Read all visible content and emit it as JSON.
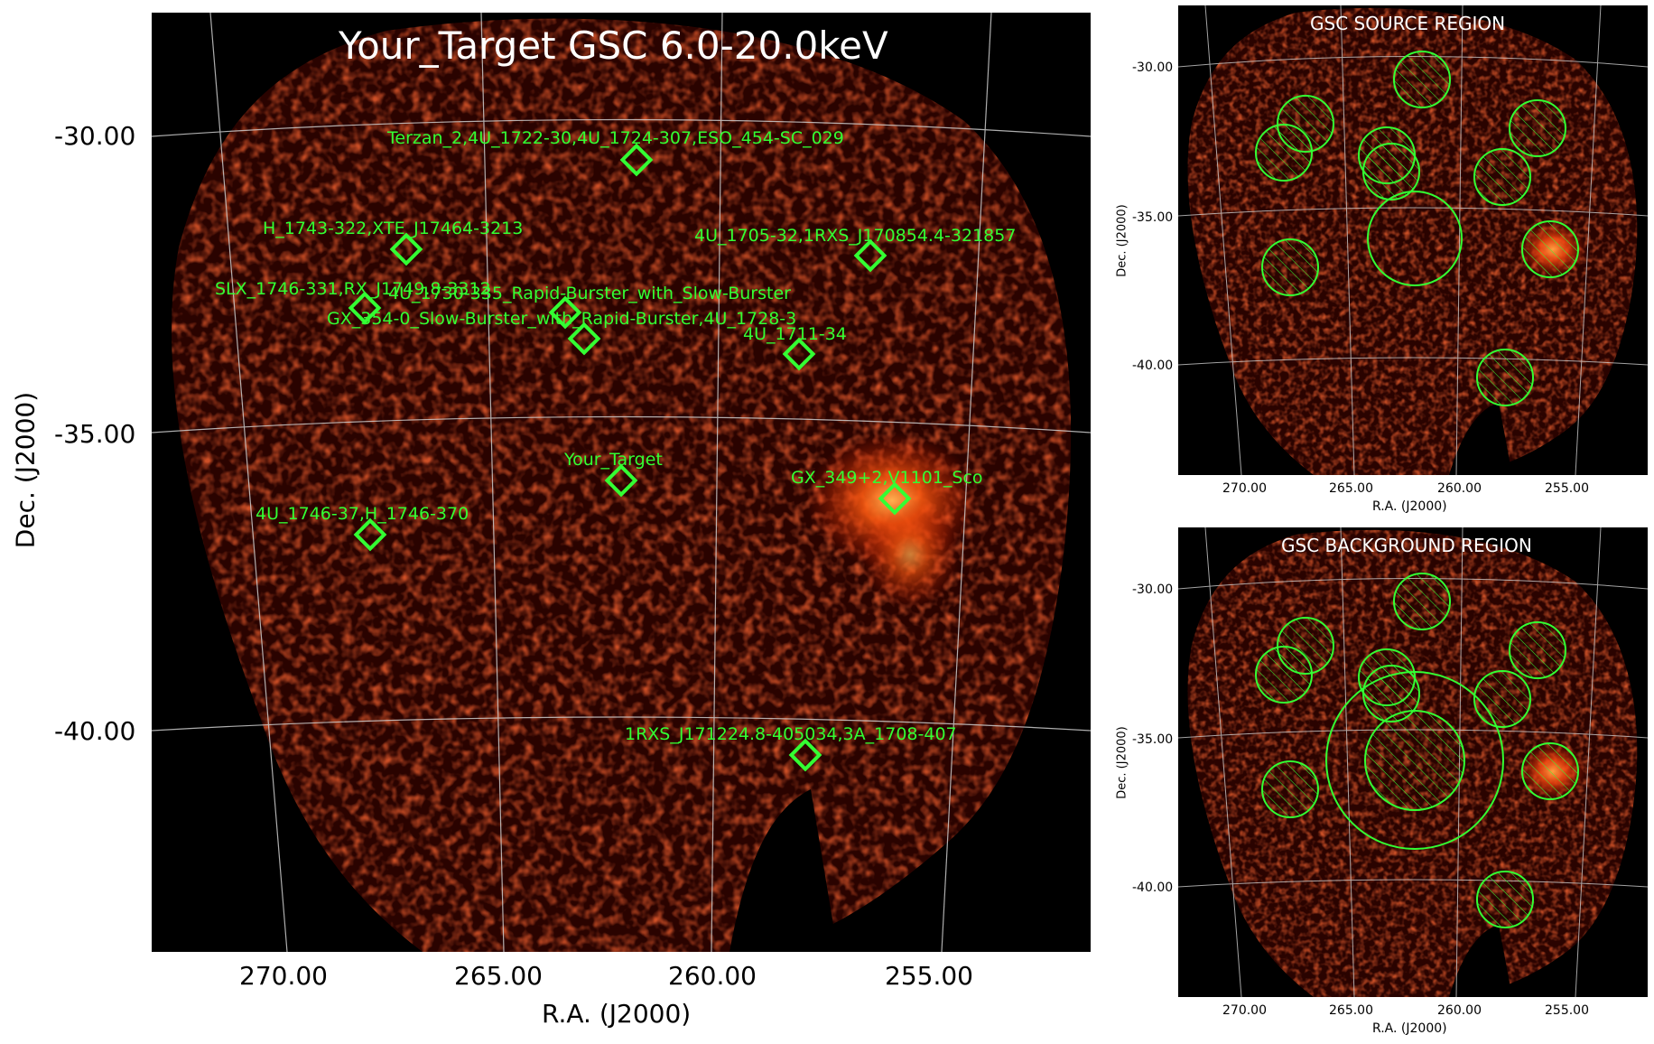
{
  "main": {
    "title": "Your_Target GSC 6.0-20.0keV",
    "xlabel": "R.A. (J2000)",
    "ylabel": "Dec. (J2000)",
    "xticks": [
      "270.00",
      "265.00",
      "260.00",
      "255.00"
    ],
    "yticks": [
      "-30.00",
      "-35.00",
      "-40.00"
    ],
    "sources": [
      {
        "label": "Terzan_2,4U_1722-30,4U_1724-307,ESO_454-SC_029"
      },
      {
        "label": "H_1743-322,XTE_J17464-3213"
      },
      {
        "label": "4U_1705-32,1RXS_J170854.4-321857"
      },
      {
        "label": "SLX_1746-331,RX_J1749.8-3312"
      },
      {
        "label": "rapid-burster-label-a",
        "text": "4U_1730-335_Rapid-Burster_with_Slow-Burster"
      },
      {
        "label": "GX_354-0_Slow-Burster_with_Rapid-Burster,4U_1728-3"
      },
      {
        "label": "4U_1711-34"
      },
      {
        "label": "Your_Target"
      },
      {
        "label": "GX_349+2,V1101_Sco"
      },
      {
        "label": "4U_1746-37,H_1746-370"
      },
      {
        "label": "1RXS_J171224.8-405034,3A_1708-407"
      }
    ]
  },
  "source_panel": {
    "title": "GSC SOURCE REGION",
    "xlabel": "R.A. (J2000)",
    "ylabel": "Dec. (J2000)",
    "xticks": [
      "270.00",
      "265.00",
      "260.00",
      "255.00"
    ],
    "yticks": [
      "-30.00",
      "-35.00",
      "-40.00"
    ]
  },
  "background_panel": {
    "title": "GSC BACKGROUND REGION",
    "xlabel": "R.A. (J2000)",
    "ylabel": "Dec. (J2000)",
    "xticks": [
      "270.00",
      "265.00",
      "260.00",
      "255.00"
    ],
    "yticks": [
      "-30.00",
      "-35.00",
      "-40.00"
    ]
  },
  "colors": {
    "marker": "#33ff33",
    "grid": "#cccccc",
    "heat_low": "#3a0500",
    "heat_high": "#ff9a30"
  }
}
